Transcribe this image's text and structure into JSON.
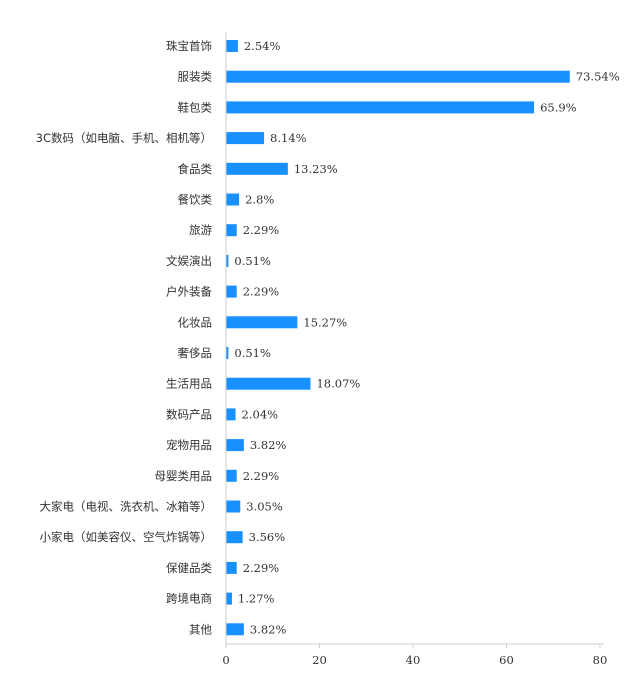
{
  "chart_data": {
    "type": "bar",
    "orientation": "horizontal",
    "title": "",
    "xlabel": "",
    "ylabel": "",
    "xlim": [
      0,
      80
    ],
    "x_ticks": [
      0,
      20,
      40,
      60,
      80
    ],
    "grid": false,
    "bar_color": "#1890ff",
    "categories": [
      "珠宝首饰",
      "服装类",
      "鞋包类",
      "3C数码（如电脑、手机、相机等）",
      "食品类",
      "餐饮类",
      "旅游",
      "文娱演出",
      "户外装备",
      "化妆品",
      "奢侈品",
      "生活用品",
      "数码产品",
      "宠物用品",
      "母婴类用品",
      "大家电（电视、洗衣机、冰箱等）",
      "小家电（如美容仪、空气炸锅等）",
      "保健品类",
      "跨境电商",
      "其他"
    ],
    "values": [
      2.54,
      73.54,
      65.9,
      8.14,
      13.23,
      2.8,
      2.29,
      0.51,
      2.29,
      15.27,
      0.51,
      18.07,
      2.04,
      3.82,
      2.29,
      3.05,
      3.56,
      2.29,
      1.27,
      3.82
    ],
    "value_labels": [
      "2.54%",
      "73.54%",
      "65.9%",
      "8.14%",
      "13.23%",
      "2.8%",
      "2.29%",
      "0.51%",
      "2.29%",
      "15.27%",
      "0.51%",
      "18.07%",
      "2.04%",
      "3.82%",
      "2.29%",
      "3.05%",
      "3.56%",
      "2.29%",
      "1.27%",
      "3.82%"
    ]
  }
}
